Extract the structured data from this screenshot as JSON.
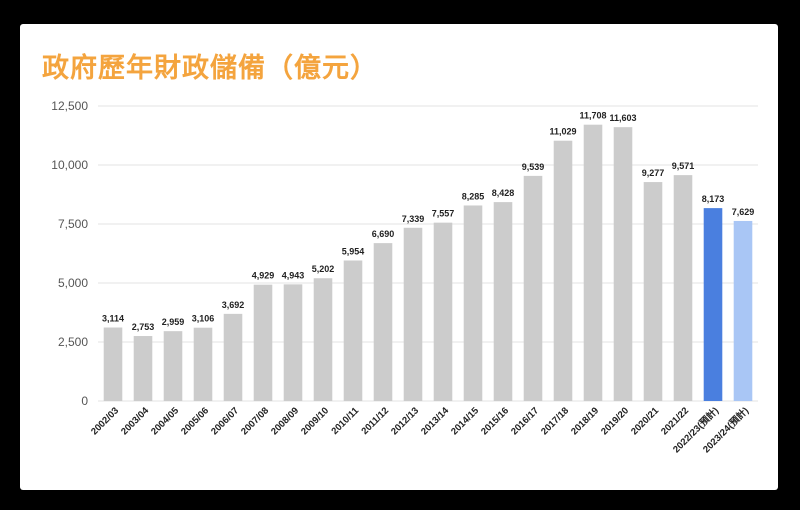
{
  "chart_data": {
    "type": "bar",
    "title": "政府歷年財政儲備（億元）",
    "xlabel": "",
    "ylabel": "",
    "ylim": [
      0,
      12500
    ],
    "yticks": [
      0,
      2500,
      5000,
      7500,
      10000,
      12500
    ],
    "ytick_labels": [
      "0",
      "2,500",
      "5,000",
      "7,500",
      "10,000",
      "12,500"
    ],
    "grid": true,
    "legend": "none",
    "categories": [
      "2002/03",
      "2003/04",
      "2004/05",
      "2005/06",
      "2006/07",
      "2007/08",
      "2008/09",
      "2009/10",
      "2010/11",
      "2011/12",
      "2012/13",
      "2013/14",
      "2014/15",
      "2015/16",
      "2016/17",
      "2017/18",
      "2018/19",
      "2019/20",
      "2020/21",
      "2021/22",
      "2022/23(預計)",
      "2023/24(預計)"
    ],
    "values": [
      3114,
      2753,
      2959,
      3106,
      3692,
      4929,
      4943,
      5202,
      5954,
      6690,
      7339,
      7557,
      8285,
      8428,
      9539,
      11029,
      11708,
      11603,
      9277,
      9571,
      8173,
      7629
    ],
    "value_labels": [
      "3,114",
      "2,753",
      "2,959",
      "3,106",
      "3,692",
      "4,929",
      "4,943",
      "5,202",
      "5,954",
      "6,690",
      "7,339",
      "7,557",
      "8,285",
      "8,428",
      "9,539",
      "11,029",
      "11,708",
      "11,603",
      "9,277",
      "9,571",
      "8,173",
      "7,629"
    ],
    "bar_colors": [
      "#cccccc",
      "#cccccc",
      "#cccccc",
      "#cccccc",
      "#cccccc",
      "#cccccc",
      "#cccccc",
      "#cccccc",
      "#cccccc",
      "#cccccc",
      "#cccccc",
      "#cccccc",
      "#cccccc",
      "#cccccc",
      "#cccccc",
      "#cccccc",
      "#cccccc",
      "#cccccc",
      "#cccccc",
      "#cccccc",
      "#4a7fdf",
      "#a9c6f5"
    ]
  },
  "colors": {
    "title": "#f4a43e",
    "gridline": "#e3e3e3",
    "background": "#000000"
  }
}
